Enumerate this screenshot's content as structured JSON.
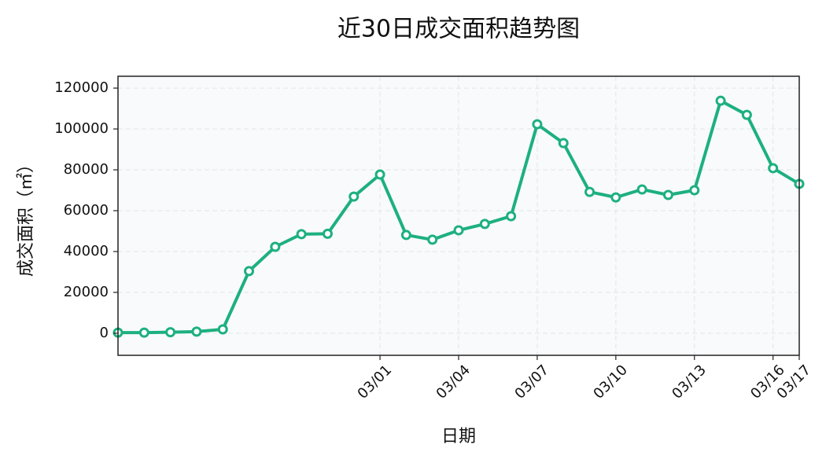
{
  "chart_data": {
    "type": "line",
    "title": "近30日成交面积趋势图",
    "x_label": "日期",
    "y_label": "成交面积（㎡）",
    "categories": [
      null,
      null,
      null,
      null,
      null,
      null,
      null,
      null,
      null,
      null,
      "03/01",
      null,
      null,
      "03/04",
      null,
      null,
      "03/07",
      null,
      null,
      "03/10",
      null,
      null,
      "03/13",
      null,
      null,
      "03/16",
      "03/17"
    ],
    "series": [
      {
        "name": "成交面积",
        "color": "#1db07f",
        "values": [
          300,
          300,
          500,
          800,
          1900,
          30400,
          42300,
          48500,
          48700,
          66900,
          77700,
          48100,
          45800,
          50400,
          53500,
          57300,
          102300,
          93100,
          69200,
          66500,
          70400,
          67700,
          70000,
          113800,
          106900,
          80800,
          73100
        ]
      }
    ],
    "ylim": [
      -10800,
      125800
    ],
    "yticks": [
      0,
      20000,
      40000,
      60000,
      80000,
      100000,
      120000
    ],
    "grid": true
  }
}
